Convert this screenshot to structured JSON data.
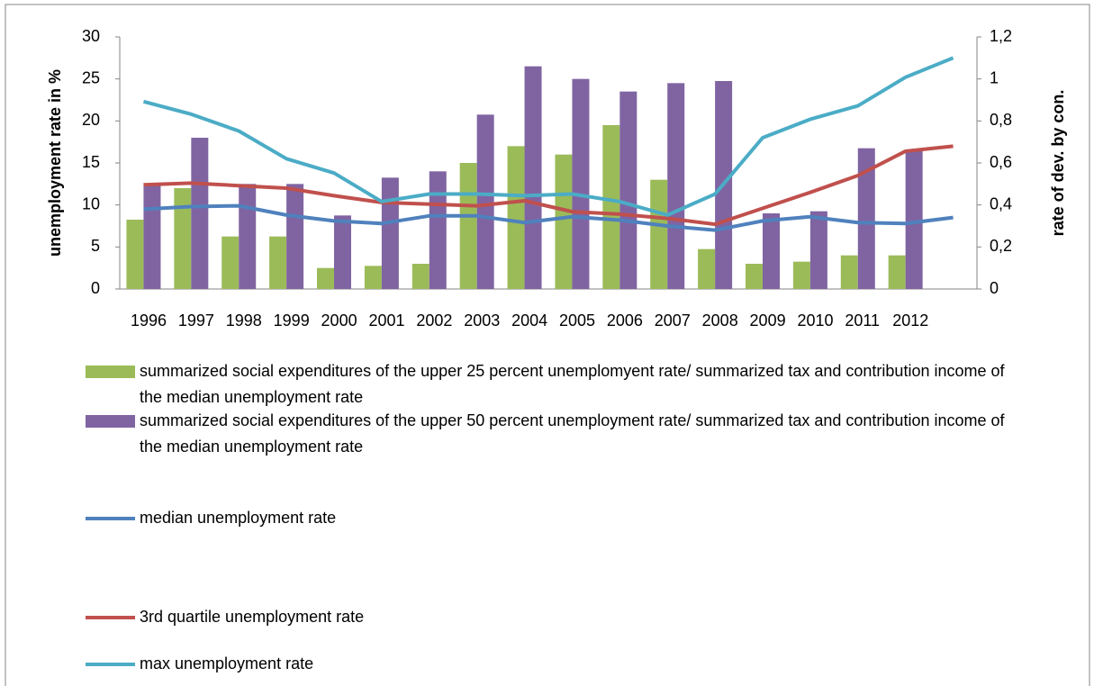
{
  "chart_data": {
    "type": "bar",
    "y_label": "unemployment rate in %",
    "y2_label": "rate of dev. by con.",
    "categories": [
      "1996",
      "1997",
      "1998",
      "1999",
      "2000",
      "2001",
      "2002",
      "2003",
      "2004",
      "2005",
      "2006",
      "2007",
      "2008",
      "2009",
      "2010",
      "2011",
      "2012",
      null
    ],
    "ylim": [
      0,
      30
    ],
    "yticks": [
      0,
      5,
      10,
      15,
      20,
      25,
      30
    ],
    "y2lim": [
      0,
      1.2
    ],
    "y2ticks": [
      0,
      {
        "value": 0.2,
        "label": "0,2"
      },
      {
        "value": 0.4,
        "label": "0,4"
      },
      {
        "value": 0.6,
        "label": "0,6"
      },
      {
        "value": 0.8,
        "label": "0,8"
      },
      1,
      {
        "value": 1.2,
        "label": "1,2"
      }
    ],
    "series": [
      {
        "name": "summarized social expenditures of the upper 25 percent unemplomyent rate/ summarized tax and contribution income of the median unemployment rate",
        "type": "bar",
        "axis": "y2",
        "color": "#9bbb59",
        "values": [
          0.33,
          0.48,
          0.25,
          0.25,
          0.1,
          0.11,
          0.12,
          0.6,
          0.68,
          0.64,
          0.78,
          0.52,
          0.19,
          0.12,
          0.13,
          0.16,
          0.16,
          null
        ]
      },
      {
        "name": "summarized social expenditures of the upper 50 percent unemployment rate/  summarized tax and contribution income of the median  unemployment rate",
        "type": "bar",
        "axis": "y2",
        "color": "#8064a2",
        "values": [
          0.5,
          0.72,
          0.5,
          0.5,
          0.35,
          0.53,
          0.56,
          0.83,
          1.06,
          1.0,
          0.94,
          0.98,
          0.99,
          0.36,
          0.37,
          0.67,
          0.66,
          null
        ]
      },
      {
        "name": "median unemployment rate",
        "type": "line",
        "color": "#4f81bd",
        "values": [
          9.5,
          9.8,
          9.9,
          8.8,
          8.1,
          7.8,
          8.7,
          8.7,
          7.9,
          8.6,
          8.2,
          7.5,
          7.0,
          8.1,
          8.6,
          7.9,
          7.8,
          8.5
        ]
      },
      {
        "name": "3rd quartile unemployment rate",
        "type": "line",
        "color": "#c0504d",
        "values": [
          12.4,
          12.6,
          12.3,
          12.0,
          11.1,
          10.3,
          10.1,
          9.9,
          10.5,
          9.2,
          8.9,
          8.4,
          7.7,
          9.6,
          11.5,
          13.5,
          16.4,
          17.0
        ]
      },
      {
        "name": "max unemployment rate",
        "type": "line",
        "color": "#4bacc6",
        "values": [
          22.3,
          20.8,
          18.8,
          15.5,
          13.8,
          10.4,
          11.3,
          11.3,
          11.1,
          11.3,
          10.4,
          8.8,
          11.3,
          18.0,
          20.2,
          21.8,
          25.2,
          27.5
        ]
      }
    ]
  }
}
